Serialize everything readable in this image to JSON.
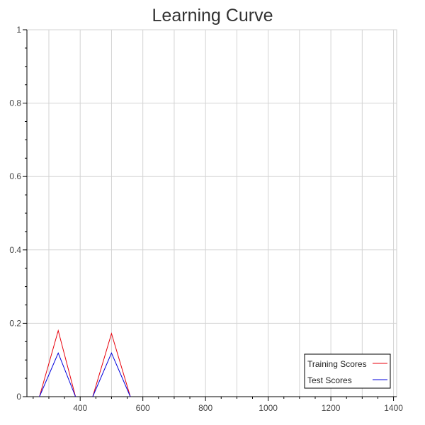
{
  "chart_data": {
    "type": "line",
    "title": "Learning Curve",
    "xlabel": "",
    "ylabel": "",
    "xlim": [
      230,
      1410
    ],
    "ylim": [
      0,
      1
    ],
    "xticks": [
      400,
      600,
      800,
      1000,
      1200,
      1400
    ],
    "yticks": [
      0,
      0.2,
      0.4,
      0.6,
      0.8,
      1
    ],
    "grid": true,
    "legend_position": "bottom-right",
    "series": [
      {
        "name": "Training Scores",
        "color": "#e8000b",
        "points": [
          [
            270,
            0
          ],
          [
            330,
            0.18
          ],
          [
            385,
            0
          ],
          [
            null,
            null
          ],
          [
            440,
            0
          ],
          [
            500,
            0.172
          ],
          [
            560,
            0
          ]
        ]
      },
      {
        "name": "Test Scores",
        "color": "#0000dd",
        "points": [
          [
            270,
            0
          ],
          [
            330,
            0.119
          ],
          [
            385,
            0
          ],
          [
            null,
            null
          ],
          [
            440,
            0
          ],
          [
            500,
            0.119
          ],
          [
            560,
            0
          ]
        ]
      }
    ]
  }
}
